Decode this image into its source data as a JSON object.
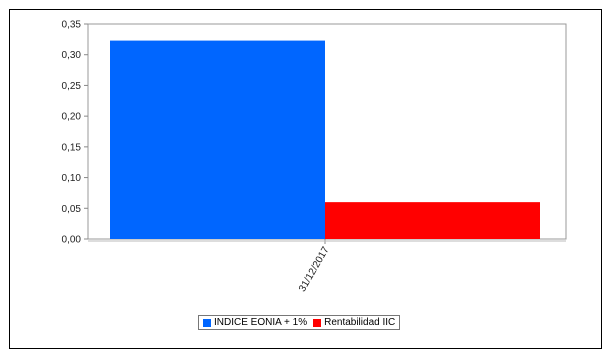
{
  "chart_data": {
    "type": "bar",
    "categories": [
      "31/12/2017"
    ],
    "series": [
      {
        "name": "INDICE EONIA + 1%",
        "color": "#0066ff",
        "values": [
          0.323
        ]
      },
      {
        "name": "Rentabilidad IIC",
        "color": "#ff0000",
        "values": [
          0.06
        ]
      }
    ],
    "ylim": [
      0,
      0.35
    ],
    "yticks": [
      "0,00",
      "0,05",
      "0,10",
      "0,15",
      "0,20",
      "0,25",
      "0,30",
      "0,35"
    ],
    "title": "",
    "xlabel": "",
    "ylabel": "",
    "grid": false,
    "legend": "bottom-center"
  }
}
